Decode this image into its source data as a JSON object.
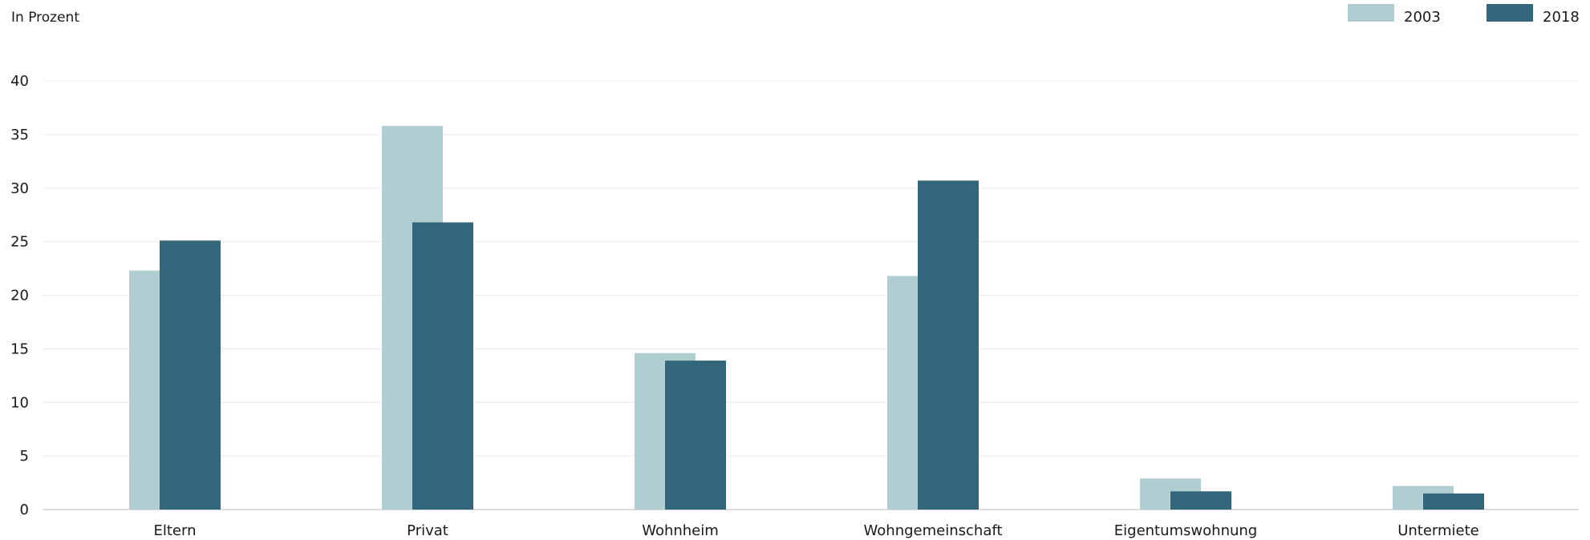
{
  "chart_data": {
    "type": "bar",
    "title": "",
    "xlabel": "",
    "ylabel": "In Prozent",
    "ylim": [
      0,
      40
    ],
    "yticks": [
      0,
      5,
      10,
      15,
      20,
      25,
      30,
      35,
      40
    ],
    "grid": true,
    "legend_position": "top-right",
    "categories": [
      "Eltern",
      "Privat",
      "Wohnheim",
      "Wohngemeinschaft",
      "Eigentumswohnung",
      "Untermiete"
    ],
    "series": [
      {
        "name": "2003",
        "color": "#b0cdd1",
        "values": [
          22.3,
          35.8,
          14.6,
          21.8,
          2.9,
          2.2
        ]
      },
      {
        "name": "2018",
        "color": "#33667b",
        "values": [
          25.1,
          26.8,
          13.9,
          30.7,
          1.7,
          1.5
        ]
      }
    ]
  }
}
